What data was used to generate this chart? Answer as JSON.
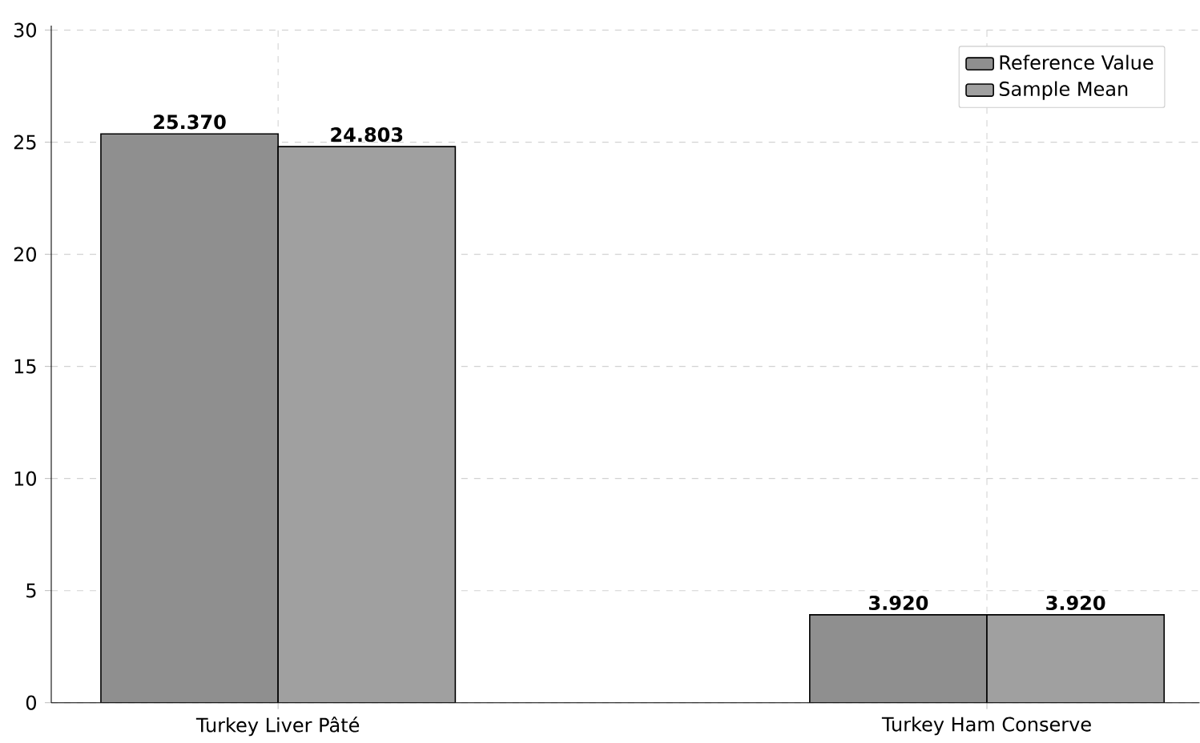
{
  "chart_data": {
    "type": "bar",
    "categories": [
      "Turkey Liver Pâté",
      "Turkey Ham Conserve"
    ],
    "series": [
      {
        "name": "Reference Value",
        "color": "#8f8f8f",
        "values": [
          25.37,
          3.92
        ],
        "value_labels": [
          "25.370",
          "3.920"
        ]
      },
      {
        "name": "Sample Mean",
        "color": "#a0a0a0",
        "values": [
          24.803,
          3.92
        ],
        "value_labels": [
          "24.803",
          "3.920"
        ]
      }
    ],
    "ylim": [
      0,
      30.2
    ],
    "yticks": [
      0,
      5,
      10,
      15,
      20,
      25,
      30
    ],
    "grid": true,
    "legend": "top right"
  }
}
